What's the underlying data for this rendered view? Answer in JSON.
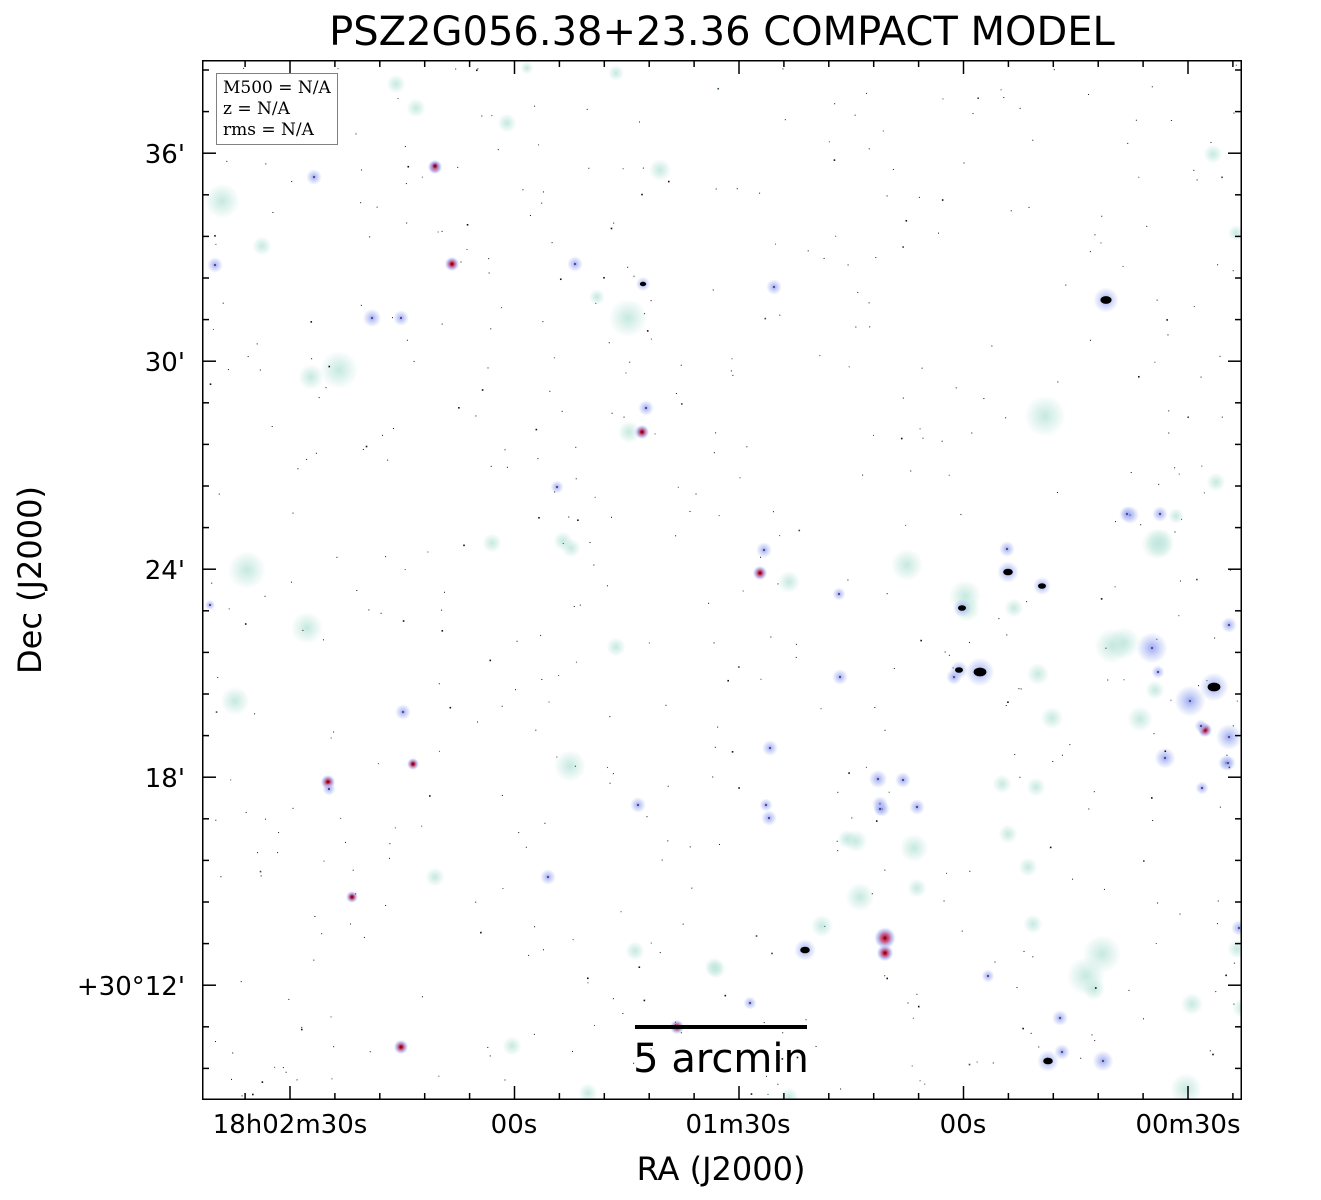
{
  "title": "PSZ2G056.38+23.36 COMPACT MODEL",
  "info_box": {
    "m500": "M500 = N/A",
    "z": "z = N/A",
    "rms": "rms = N/A"
  },
  "y_axis": {
    "label": "Dec (J2000)",
    "ticks": [
      "36'",
      "30'",
      "24'",
      "18'",
      "+30°12'"
    ]
  },
  "x_axis": {
    "label": "RA (J2000)",
    "ticks": [
      "18h02m30s",
      "00s",
      "01m30s",
      "00s",
      "00m30s"
    ]
  },
  "scale_bar": {
    "label": "5 arcmin"
  },
  "colors": {
    "background": "#ffffff",
    "source_halo_cyan": "#bfe6dc",
    "source_halo_blue": "#a8b4f0",
    "source_core_red": "#c8283c",
    "source_core_black": "#000000"
  }
}
